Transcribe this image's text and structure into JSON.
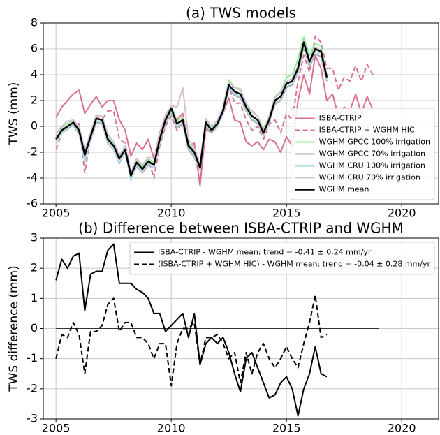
{
  "chart_data": [
    {
      "type": "line",
      "title": "(a) TWS models",
      "y_label": "TWS (mm)",
      "x": [
        2005,
        2005.25,
        2005.5,
        2005.75,
        2006,
        2006.25,
        2006.5,
        2006.75,
        2007,
        2007.25,
        2007.5,
        2007.75,
        2008,
        2008.25,
        2008.5,
        2008.75,
        2009,
        2009.25,
        2009.5,
        2009.75,
        2010,
        2010.25,
        2010.5,
        2010.75,
        2011,
        2011.25,
        2011.5,
        2011.75,
        2012,
        2012.25,
        2012.5,
        2012.75,
        2013,
        2013.25,
        2013.5,
        2013.75,
        2014,
        2014.25,
        2014.5,
        2014.75,
        2015,
        2015.25,
        2015.5,
        2015.75,
        2016,
        2016.25,
        2016.5,
        2016.75,
        2017,
        2017.25,
        2017.5,
        2017.75,
        2018,
        2018.25,
        2018.5,
        2018.75
      ],
      "xlim": [
        2004.45,
        2021.6
      ],
      "xticks": [
        2005,
        2010,
        2015,
        2020
      ],
      "ylim": [
        -6,
        8
      ],
      "yticks": [
        -6,
        -4,
        -2,
        0,
        2,
        4,
        6,
        8
      ],
      "grid": true,
      "legend": "lower right",
      "series": [
        {
          "name": "ISBA-CTRIP",
          "color": "#d9708f",
          "values": [
            0.7,
            1.5,
            2.0,
            2.5,
            2.8,
            1.0,
            1.7,
            2.3,
            1.5,
            2.0,
            2.0,
            0.5,
            -0.3,
            -2.3,
            -1.3,
            -1.8,
            -1.0,
            -2.5,
            -0.5,
            0.8,
            1.3,
            0.5,
            1.0,
            -1.5,
            -1.3,
            -4.6,
            -0.2,
            -0.5,
            0.0,
            1.0,
            2.2,
            0.5,
            0.3,
            -1.2,
            -1.5,
            -1.2,
            -1.8,
            -1.0,
            -1.2,
            -2.0,
            -0.8,
            -1.5,
            2.0,
            4.0,
            2.5,
            5.5,
            4.5,
            2.0,
            2.5,
            0.8,
            1.5,
            1.2,
            2.5,
            1.0,
            2.3,
            1.3
          ]
        },
        {
          "name": "ISBA-CTRIP + WGHM HIC",
          "color": "#d9708f",
          "dash": true,
          "values": [
            -1.8,
            -0.5,
            0.0,
            0.3,
            0.2,
            -3.6,
            -0.8,
            0.7,
            0.5,
            1.2,
            1.2,
            -1.0,
            -1.3,
            -3.5,
            -2.5,
            -3.0,
            -2.5,
            -4.0,
            -1.5,
            0.0,
            0.8,
            -0.3,
            0.3,
            -1.5,
            -1.8,
            -4.4,
            0.0,
            -0.3,
            0.3,
            1.5,
            3.0,
            1.8,
            1.8,
            0.5,
            -0.3,
            0.0,
            -1.0,
            0.2,
            0.5,
            -0.5,
            1.0,
            0.5,
            3.5,
            5.5,
            4.2,
            7.0,
            6.5,
            4.5,
            4.5,
            2.8,
            3.8,
            3.5,
            4.7,
            3.5,
            4.8,
            4.0
          ]
        },
        {
          "name": "WGHM GPCC 100% irrigation",
          "color": "#90ee90",
          "values": [
            -1.3,
            -0.1,
            0.2,
            0.5,
            -0.1,
            -2.0,
            -0.5,
            0.9,
            0.8,
            -0.8,
            -1.3,
            -2.3,
            -1.6,
            -3.7,
            -2.6,
            -3.1,
            -2.5,
            -2.8,
            -0.8,
            0.7,
            1.6,
            0.4,
            0.7,
            -1.3,
            -1.8,
            -3.0,
            0.5,
            -0.1,
            0.4,
            1.5,
            3.6,
            3.0,
            2.9,
            1.8,
            1.1,
            0.8,
            -0.2,
            0.8,
            2.3,
            2.7,
            3.8,
            4.0,
            5.2,
            6.9,
            5.5,
            6.4,
            6.2,
            4.0,
            null,
            null,
            null,
            null,
            null,
            null,
            null,
            null
          ]
        },
        {
          "name": "WGHM GPCC 70% irrigation",
          "color": "#aaaaaa",
          "values": [
            -0.8,
            -0.5,
            -0.2,
            0.1,
            -0.6,
            -2.4,
            -1.1,
            0.3,
            0.2,
            -1.3,
            -1.8,
            -2.8,
            -2.1,
            -4.0,
            -3.1,
            -3.6,
            -3.0,
            -3.2,
            -1.3,
            0.2,
            1.1,
            -0.1,
            0.2,
            -1.8,
            -2.4,
            -3.4,
            0.0,
            -0.5,
            0.0,
            1.0,
            2.9,
            2.4,
            2.2,
            1.2,
            0.5,
            0.2,
            -0.7,
            0.3,
            1.7,
            2.0,
            3.0,
            3.2,
            4.2,
            6.1,
            4.6,
            5.6,
            5.4,
            3.5,
            null,
            null,
            null,
            null,
            null,
            null,
            null,
            null
          ]
        },
        {
          "name": "WGHM CRU 100% irrigation",
          "color": "#add8e6",
          "values": [
            -1.2,
            -0.5,
            -0.1,
            0.2,
            -0.5,
            -2.8,
            -1.0,
            0.4,
            0.3,
            -1.2,
            -1.8,
            -2.9,
            -2.0,
            -4.2,
            -3.0,
            -3.5,
            -2.9,
            -3.2,
            -1.2,
            0.3,
            1.2,
            0.0,
            0.3,
            -1.6,
            -2.2,
            -3.4,
            0.1,
            -0.4,
            0.1,
            1.0,
            3.0,
            2.5,
            2.3,
            1.3,
            0.6,
            0.3,
            -0.6,
            0.3,
            1.8,
            2.1,
            3.1,
            3.3,
            4.3,
            6.3,
            4.8,
            5.8,
            5.6,
            3.6,
            null,
            null,
            null,
            null,
            null,
            null,
            null,
            null
          ]
        },
        {
          "name": "WGHM CRU 70% irrigation",
          "color": "#d8bfd8",
          "values": [
            -0.6,
            0.0,
            0.4,
            0.5,
            0.0,
            -1.8,
            -0.5,
            0.8,
            0.8,
            -0.6,
            -1.2,
            -2.2,
            -1.5,
            -3.5,
            -2.5,
            -3.0,
            -2.4,
            -2.5,
            -0.6,
            0.9,
            1.6,
            1.5,
            3.0,
            -1.0,
            -1.7,
            -2.9,
            0.6,
            0.0,
            0.5,
            1.5,
            3.4,
            3.0,
            2.8,
            1.8,
            1.2,
            0.8,
            -0.3,
            0.8,
            2.2,
            2.6,
            3.5,
            3.7,
            4.7,
            6.6,
            5.2,
            6.1,
            5.9,
            4.0,
            null,
            null,
            null,
            null,
            null,
            null,
            null,
            null
          ]
        },
        {
          "name": "WGHM mean",
          "color": "#000000",
          "bold": true,
          "values": [
            -1.0,
            -0.3,
            0.0,
            0.3,
            -0.3,
            -2.2,
            -0.8,
            0.6,
            0.5,
            -1.0,
            -1.5,
            -2.5,
            -1.8,
            -3.8,
            -2.8,
            -3.3,
            -2.7,
            -3.0,
            -1.0,
            0.5,
            1.4,
            0.2,
            0.5,
            -1.5,
            -2.0,
            -3.2,
            0.3,
            -0.3,
            0.2,
            1.2,
            3.2,
            2.7,
            2.5,
            1.5,
            0.8,
            0.5,
            -0.5,
            0.5,
            2.0,
            2.3,
            3.3,
            3.5,
            4.5,
            6.5,
            5.0,
            6.0,
            5.8,
            3.8,
            null,
            null,
            null,
            null,
            null,
            null,
            null,
            null
          ]
        }
      ]
    },
    {
      "type": "line",
      "title": "(b) Difference between ISBA-CTRIP and WGHM",
      "y_label": "TWS difference (mm)",
      "x": [
        2005,
        2005.25,
        2005.5,
        2005.75,
        2006,
        2006.25,
        2006.5,
        2006.75,
        2007,
        2007.25,
        2007.5,
        2007.75,
        2008,
        2008.25,
        2008.5,
        2008.75,
        2009,
        2009.25,
        2009.5,
        2009.75,
        2010,
        2010.25,
        2010.5,
        2010.75,
        2011,
        2011.25,
        2011.5,
        2011.75,
        2012,
        2012.25,
        2012.5,
        2012.75,
        2013,
        2013.25,
        2013.5,
        2013.75,
        2014,
        2014.25,
        2014.5,
        2014.75,
        2015,
        2015.25,
        2015.5,
        2015.75,
        2016,
        2016.25,
        2016.5,
        2016.75
      ],
      "xlim": [
        2004.45,
        2021.6
      ],
      "xticks": [
        2005,
        2010,
        2015,
        2020
      ],
      "ylim": [
        -3,
        3
      ],
      "yticks": [
        -3,
        -2,
        -1,
        0,
        1,
        2,
        3
      ],
      "grid": true,
      "legend": "upper right",
      "hline": {
        "y": 0,
        "x": [
          2005,
          2019
        ],
        "color": "#000000"
      },
      "series": [
        {
          "name": "ISBA-CTRIP - WGHM mean: trend = -0.41 ± 0.24 mm/yr",
          "color": "#000000",
          "values": [
            1.6,
            2.3,
            2.0,
            2.4,
            2.5,
            0.6,
            1.8,
            1.9,
            1.9,
            2.6,
            2.8,
            1.5,
            1.5,
            1.5,
            1.3,
            1.2,
            1.0,
            0.5,
            0.5,
            -0.1,
            0.1,
            0.3,
            0.5,
            -0.3,
            0.5,
            -1.2,
            -0.5,
            -0.3,
            -0.5,
            -0.3,
            -0.8,
            -1.5,
            -2.1,
            -1.0,
            -0.8,
            -1.3,
            -1.8,
            -2.3,
            -2.2,
            -1.8,
            -1.6,
            -2.0,
            -2.9,
            -2.0,
            -1.5,
            -0.6,
            -1.5,
            -1.6
          ]
        },
        {
          "name": "(ISBA-CTRIP + WGHM HIC) - WGHM mean: trend = -0.04 ± 0.28 mm/yr",
          "color": "#000000",
          "dash": true,
          "values": [
            -1.0,
            -0.2,
            -0.3,
            0.2,
            -0.2,
            -1.5,
            -0.1,
            -0.1,
            0.1,
            0.8,
            1.0,
            -0.1,
            0.2,
            0.2,
            -0.3,
            -0.3,
            -0.5,
            -1.0,
            -0.5,
            -0.5,
            -1.9,
            -0.5,
            0.0,
            0.0,
            0.2,
            -1.2,
            -0.3,
            -0.3,
            -0.2,
            -0.5,
            -1.0,
            -0.8,
            -1.8,
            -0.8,
            -1.5,
            -0.8,
            -0.5,
            -1.0,
            -1.3,
            -1.0,
            -0.6,
            -1.0,
            -1.3,
            -0.5,
            0.2,
            1.1,
            -0.3,
            -0.2
          ]
        }
      ]
    }
  ]
}
